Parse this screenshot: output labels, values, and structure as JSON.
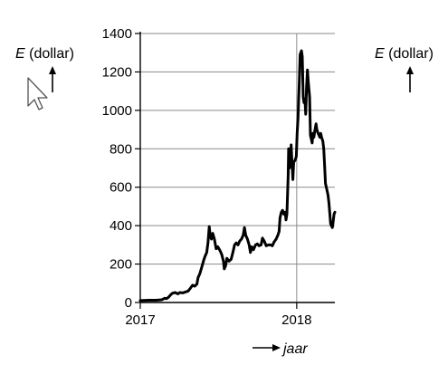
{
  "chart_data": {
    "type": "line",
    "title": "",
    "ylabel_var": "E",
    "ylabel_unit": " (dollar)",
    "right_label_var": "E",
    "right_label_unit": " (dollar)",
    "xlabel": "jaar",
    "ylim": [
      0,
      1400
    ],
    "xlim": [
      "2017-01-01",
      "2018-03-31"
    ],
    "y_ticks": [
      0,
      200,
      400,
      600,
      800,
      1000,
      1200,
      1400
    ],
    "x_ticks": [
      {
        "date": "2017-01-01",
        "label": "2017"
      },
      {
        "date": "2018-01-01",
        "label": "2018"
      }
    ],
    "grid": true,
    "series": [
      {
        "points": [
          [
            "2017-01-01",
            10
          ],
          [
            "2017-01-21",
            12
          ],
          [
            "2017-02-07",
            12
          ],
          [
            "2017-02-20",
            14
          ],
          [
            "2017-02-27",
            22
          ],
          [
            "2017-03-03",
            20
          ],
          [
            "2017-03-08",
            28
          ],
          [
            "2017-03-13",
            40
          ],
          [
            "2017-03-17",
            48
          ],
          [
            "2017-03-23",
            52
          ],
          [
            "2017-03-30",
            45
          ],
          [
            "2017-04-03",
            52
          ],
          [
            "2017-04-10",
            50
          ],
          [
            "2017-04-17",
            55
          ],
          [
            "2017-04-23",
            60
          ],
          [
            "2017-04-29",
            78
          ],
          [
            "2017-05-03",
            90
          ],
          [
            "2017-05-08",
            85
          ],
          [
            "2017-05-13",
            95
          ],
          [
            "2017-05-16",
            130
          ],
          [
            "2017-05-20",
            150
          ],
          [
            "2017-05-24",
            180
          ],
          [
            "2017-05-29",
            220
          ],
          [
            "2017-06-01",
            240
          ],
          [
            "2017-06-05",
            260
          ],
          [
            "2017-06-08",
            310
          ],
          [
            "2017-06-11",
            395
          ],
          [
            "2017-06-13",
            350
          ],
          [
            "2017-06-16",
            330
          ],
          [
            "2017-06-19",
            360
          ],
          [
            "2017-06-23",
            330
          ],
          [
            "2017-06-27",
            280
          ],
          [
            "2017-07-01",
            290
          ],
          [
            "2017-07-06",
            270
          ],
          [
            "2017-07-10",
            250
          ],
          [
            "2017-07-14",
            215
          ],
          [
            "2017-07-16",
            175
          ],
          [
            "2017-07-19",
            190
          ],
          [
            "2017-07-22",
            230
          ],
          [
            "2017-07-27",
            215
          ],
          [
            "2017-08-01",
            225
          ],
          [
            "2017-08-05",
            260
          ],
          [
            "2017-08-09",
            300
          ],
          [
            "2017-08-13",
            310
          ],
          [
            "2017-08-17",
            300
          ],
          [
            "2017-08-21",
            320
          ],
          [
            "2017-08-25",
            330
          ],
          [
            "2017-08-29",
            350
          ],
          [
            "2017-09-01",
            390
          ],
          [
            "2017-09-04",
            350
          ],
          [
            "2017-09-08",
            330
          ],
          [
            "2017-09-12",
            300
          ],
          [
            "2017-09-15",
            260
          ],
          [
            "2017-09-18",
            290
          ],
          [
            "2017-09-22",
            275
          ],
          [
            "2017-09-27",
            300
          ],
          [
            "2017-10-01",
            305
          ],
          [
            "2017-10-05",
            295
          ],
          [
            "2017-10-10",
            300
          ],
          [
            "2017-10-13",
            335
          ],
          [
            "2017-10-17",
            320
          ],
          [
            "2017-10-22",
            295
          ],
          [
            "2017-10-27",
            300
          ],
          [
            "2017-11-01",
            300
          ],
          [
            "2017-11-05",
            295
          ],
          [
            "2017-11-09",
            315
          ],
          [
            "2017-11-14",
            330
          ],
          [
            "2017-11-18",
            350
          ],
          [
            "2017-11-21",
            370
          ],
          [
            "2017-11-23",
            440
          ],
          [
            "2017-11-26",
            470
          ],
          [
            "2017-11-29",
            480
          ],
          [
            "2017-12-02",
            460
          ],
          [
            "2017-12-05",
            470
          ],
          [
            "2017-12-07",
            430
          ],
          [
            "2017-12-09",
            460
          ],
          [
            "2017-12-12",
            660
          ],
          [
            "2017-12-13",
            800
          ],
          [
            "2017-12-15",
            700
          ],
          [
            "2017-12-17",
            720
          ],
          [
            "2017-12-19",
            820
          ],
          [
            "2017-12-21",
            730
          ],
          [
            "2017-12-23",
            640
          ],
          [
            "2017-12-25",
            730
          ],
          [
            "2017-12-28",
            740
          ],
          [
            "2017-12-31",
            760
          ],
          [
            "2018-01-02",
            880
          ],
          [
            "2018-01-04",
            960
          ],
          [
            "2018-01-07",
            1150
          ],
          [
            "2018-01-09",
            1290
          ],
          [
            "2018-01-12",
            1310
          ],
          [
            "2018-01-14",
            1280
          ],
          [
            "2018-01-16",
            1070
          ],
          [
            "2018-01-18",
            1040
          ],
          [
            "2018-01-20",
            1060
          ],
          [
            "2018-01-22",
            980
          ],
          [
            "2018-01-24",
            1120
          ],
          [
            "2018-01-26",
            1210
          ],
          [
            "2018-01-28",
            1150
          ],
          [
            "2018-01-31",
            1070
          ],
          [
            "2018-02-02",
            870
          ],
          [
            "2018-02-04",
            850
          ],
          [
            "2018-02-06",
            830
          ],
          [
            "2018-02-08",
            880
          ],
          [
            "2018-02-10",
            860
          ],
          [
            "2018-02-12",
            890
          ],
          [
            "2018-02-15",
            930
          ],
          [
            "2018-02-17",
            900
          ],
          [
            "2018-02-20",
            880
          ],
          [
            "2018-02-22",
            870
          ],
          [
            "2018-02-24",
            860
          ],
          [
            "2018-02-26",
            880
          ],
          [
            "2018-02-28",
            860
          ],
          [
            "2018-03-03",
            840
          ],
          [
            "2018-03-05",
            800
          ],
          [
            "2018-03-07",
            720
          ],
          [
            "2018-03-09",
            620
          ],
          [
            "2018-03-12",
            590
          ],
          [
            "2018-03-15",
            560
          ],
          [
            "2018-03-17",
            520
          ],
          [
            "2018-03-19",
            470
          ],
          [
            "2018-03-21",
            410
          ],
          [
            "2018-03-23",
            400
          ],
          [
            "2018-03-25",
            390
          ],
          [
            "2018-03-27",
            420
          ],
          [
            "2018-03-29",
            460
          ],
          [
            "2018-03-31",
            470
          ]
        ]
      }
    ]
  }
}
